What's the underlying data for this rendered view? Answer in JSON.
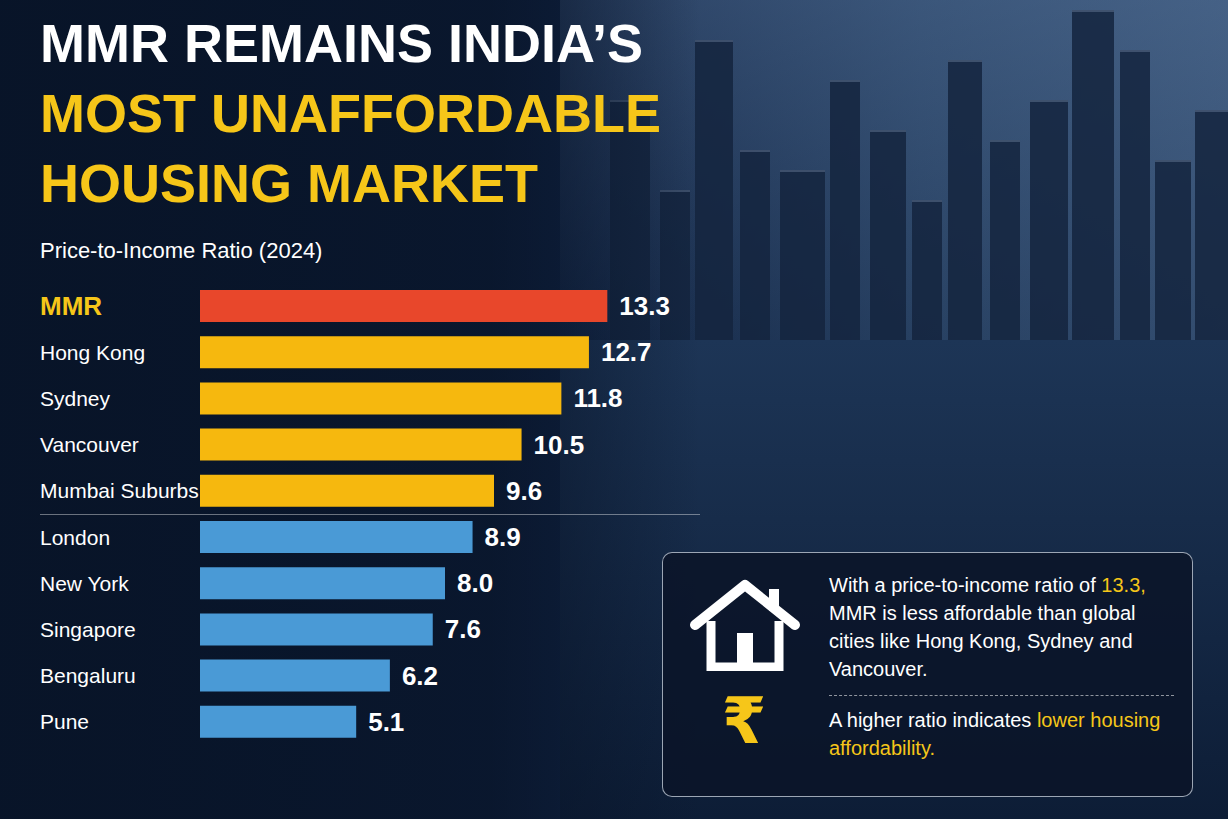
{
  "chart_data": {
    "type": "bar",
    "orientation": "horizontal",
    "title": [
      "MMR REMAINS INDIA’S",
      "MOST UNAFFORDABLE",
      "HOUSING MARKET"
    ],
    "subtitle": "Price-to-Income Ratio (2024)",
    "categories": [
      "MMR",
      "Hong Kong",
      "Sydney",
      "Vancouver",
      "Mumbai Suburbs",
      "London",
      "New York",
      "Singapore",
      "Bengaluru",
      "Pune"
    ],
    "values": [
      13.3,
      12.7,
      11.8,
      10.5,
      9.6,
      8.9,
      8.0,
      7.6,
      6.2,
      5.1
    ],
    "value_labels": [
      "13.3",
      "12.7",
      "11.8",
      "10.5",
      "9.6",
      "8.9",
      "8.0",
      "7.6",
      "6.2",
      "5.1"
    ],
    "colors": [
      "#e8472b",
      "#f6b80e",
      "#f6b80e",
      "#f6b80e",
      "#f6b80e",
      "#4a9ad6",
      "#4a9ad6",
      "#4a9ad6",
      "#4a9ad6",
      "#4a9ad6"
    ],
    "xlim": [
      0,
      16
    ],
    "data_labels": true,
    "tick_labels": "y",
    "grid": false,
    "annotations": {
      "symbol": "₹",
      "paragraphs": [
        [
          {
            "text": "With a price-to-income ratio of ",
            "color": "#ffffff"
          },
          {
            "text": "13.3,",
            "color": "#f6c619"
          },
          {
            "text": " MMR is less affordable than global cities like Hong Kong, Sydney and Vancouver.",
            "color": "#ffffff"
          }
        ],
        [
          {
            "text": "A higher ratio indicates ",
            "color": "#ffffff"
          },
          {
            "text": "lower housing affordability.",
            "color": "#f6c619"
          }
        ]
      ]
    }
  }
}
